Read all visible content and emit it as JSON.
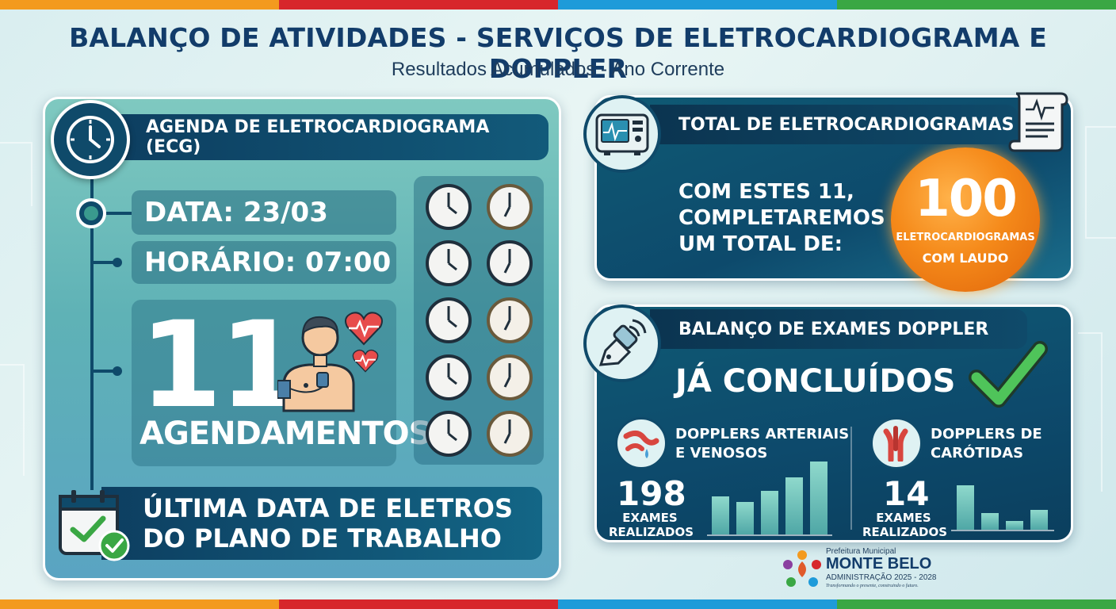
{
  "header": {
    "title": "BALANÇO DE ATIVIDADES - SERVIÇOS DE ELETROCARDIOGRAMA E DOPPLER",
    "subtitle": "Resultados Acumulados - Ano Corrente"
  },
  "agenda": {
    "title": "AGENDA DE ELETROCARDIOGRAMA (ECG)",
    "data": "DATA: 23/03",
    "horario": "HORÁRIO: 07:00",
    "count": "11",
    "count_label": "AGENDAMENTOS",
    "ultima_line1": "ÚLTIMA DATA DE ELETROS",
    "ultima_line2": "DO PLANO DE TRABALHO"
  },
  "total_ecg": {
    "title": "TOTAL DE ELETROCARDIOGRAMAS",
    "text": "COM ESTES 11, COMPLETAREMOS UM TOTAL DE:",
    "total": "100",
    "total_label_1": "ELETROCARDIOGRAMAS",
    "total_label_2": "COM LAUDO",
    "accent_color": "#f58a1a"
  },
  "doppler": {
    "title": "BALANÇO DE EXAMES DOPPLER",
    "status": "JÁ CONCLUÍDOS",
    "arterial": {
      "label_1": "DOPPLERS ARTERIAIS",
      "label_2": "E VENOSOS",
      "count": "198",
      "count_label_1": "EXAMES",
      "count_label_2": "REALIZADOS",
      "bar_levels": [
        0.52,
        0.45,
        0.6,
        0.78,
        1.0
      ]
    },
    "carotidas": {
      "label_1": "DOPPLERS DE",
      "label_2": "CARÓTIDAS",
      "count": "14",
      "count_label_1": "EXAMES",
      "count_label_2": "REALIZADOS",
      "bar_levels": [
        1.0,
        0.38,
        0.2,
        0.45
      ]
    }
  },
  "logo": {
    "prefeitura": "Prefeitura Municipal",
    "city": "MONTE BELO",
    "administracao": "ADMINISTRAÇÃO 2025 - 2028",
    "tagline": "Transformando o presente, construindo o futuro."
  },
  "icons": [
    "clock-icon",
    "patient-ecg-icon",
    "heart-pulse-icon",
    "calendar-check-icon",
    "ecg-monitor-icon",
    "report-icon",
    "doppler-probe-icon",
    "check-icon",
    "artery-icon",
    "carotid-icon"
  ]
}
